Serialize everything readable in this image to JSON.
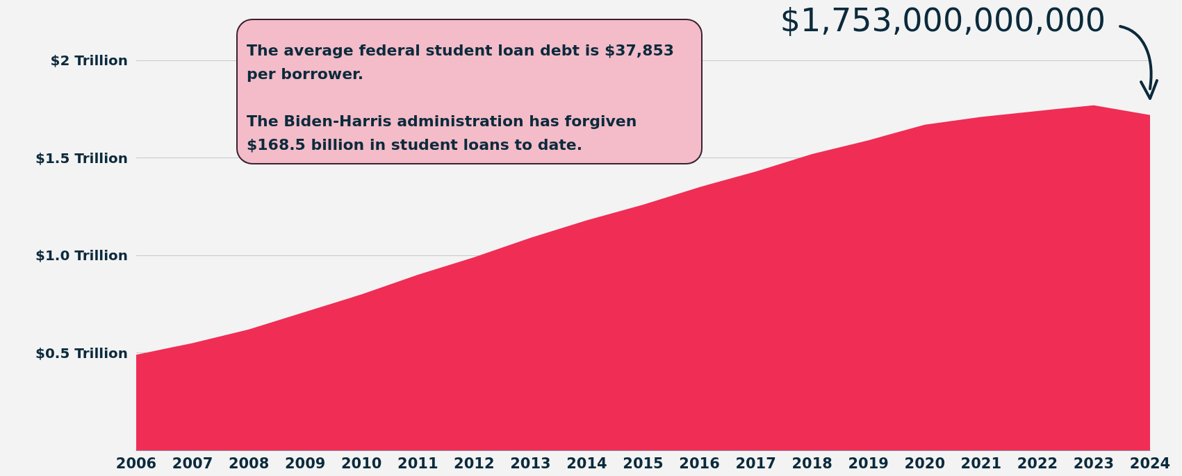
{
  "chart_data": {
    "type": "area",
    "categories": [
      "2006",
      "2007",
      "2008",
      "2009",
      "2010",
      "2011",
      "2012",
      "2013",
      "2014",
      "2015",
      "2016",
      "2017",
      "2018",
      "2019",
      "2020",
      "2021",
      "2022",
      "2023",
      "2024"
    ],
    "values": [
      0.49,
      0.55,
      0.62,
      0.71,
      0.8,
      0.9,
      0.99,
      1.09,
      1.18,
      1.26,
      1.35,
      1.43,
      1.52,
      1.59,
      1.67,
      1.71,
      1.74,
      1.77,
      1.72
    ],
    "color": "#f02d55",
    "ylim": [
      0,
      2
    ],
    "yticks": [
      {
        "value": 0,
        "label": null
      },
      {
        "value": 0.5,
        "label": "$0.5 Trillion"
      },
      {
        "value": 1,
        "label": "$1.0 Trillion"
      },
      {
        "value": 1.5,
        "label": "$1.5 Trillion"
      },
      {
        "value": 2,
        "label": "$2 Trillion"
      }
    ],
    "grid": "y",
    "annotations": [
      "The average federal student loan debt is $37,853 per borrower.",
      "The Biden-Harris administration has forgiven $168.5 billion in student loans to date.",
      "$1,753,000,000,000"
    ]
  }
}
